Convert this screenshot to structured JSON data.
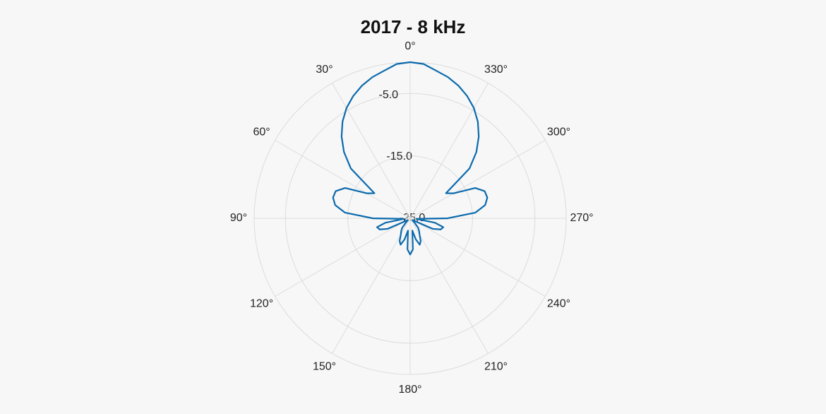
{
  "chart_data": {
    "type": "polar",
    "title": "2017 - 8 kHz",
    "theta_direction": "counterclockwise",
    "theta_zero": "top",
    "x": [
      0,
      5,
      10,
      15,
      20,
      25,
      30,
      35,
      40,
      45,
      50,
      55,
      60,
      65,
      70,
      75,
      80,
      85,
      90,
      95,
      100,
      105,
      110,
      115,
      120,
      125,
      130,
      135,
      140,
      145,
      150,
      155,
      160,
      165,
      170,
      175,
      180,
      185,
      190,
      195,
      200,
      205,
      210,
      215,
      220,
      225,
      230,
      235,
      240,
      245,
      250,
      255,
      260,
      265,
      270,
      275,
      280,
      285,
      290,
      295,
      300,
      305,
      310,
      315,
      320,
      325,
      330,
      335,
      340,
      345,
      350,
      355
    ],
    "series": [
      {
        "color": "#0b6aad",
        "values": [
          0,
          -0.2,
          -1.0,
          -1.6,
          -2.4,
          -3.4,
          -4.6,
          -6.1,
          -7.9,
          -10,
          -12.6,
          -18,
          -17,
          -13.5,
          -12.3,
          -12.2,
          -12.8,
          -14.5,
          -19,
          -24,
          -21,
          -19.5,
          -19.8,
          -21,
          -24,
          -24.5,
          -24.5,
          -24,
          -23,
          -22.5,
          -22,
          -21,
          -20.5,
          -21.5,
          -23,
          -20,
          -19.2,
          -20,
          -23,
          -21.5,
          -20.5,
          -21,
          -22,
          -22.5,
          -23,
          -24,
          -24.5,
          -24.5,
          -24,
          -21,
          -19.8,
          -19.5,
          -21,
          -24,
          -19,
          -14.5,
          -12.8,
          -12.2,
          -12.3,
          -13.5,
          -17,
          -18,
          -12.6,
          -10,
          -7.9,
          -6.1,
          -4.6,
          -3.4,
          -2.4,
          -1.6,
          -1.0,
          -0.2
        ]
      }
    ],
    "xticks": [
      {
        "value": 0,
        "label": "0°"
      },
      {
        "value": 30,
        "label": "30°"
      },
      {
        "value": 60,
        "label": "60°"
      },
      {
        "value": 90,
        "label": "90°"
      },
      {
        "value": 120,
        "label": "120°"
      },
      {
        "value": 150,
        "label": "150°"
      },
      {
        "value": 180,
        "label": "180°"
      },
      {
        "value": 210,
        "label": "210°"
      },
      {
        "value": 240,
        "label": "240°"
      },
      {
        "value": 270,
        "label": "270°"
      },
      {
        "value": 300,
        "label": "300°"
      },
      {
        "value": 330,
        "label": "330°"
      }
    ],
    "ylim": [
      -25,
      0
    ],
    "yticks": [
      {
        "value": -25,
        "label": "-25.0"
      },
      {
        "value": -15,
        "label": "-15.0"
      },
      {
        "value": -5,
        "label": "-5.0"
      }
    ],
    "grid": true
  }
}
